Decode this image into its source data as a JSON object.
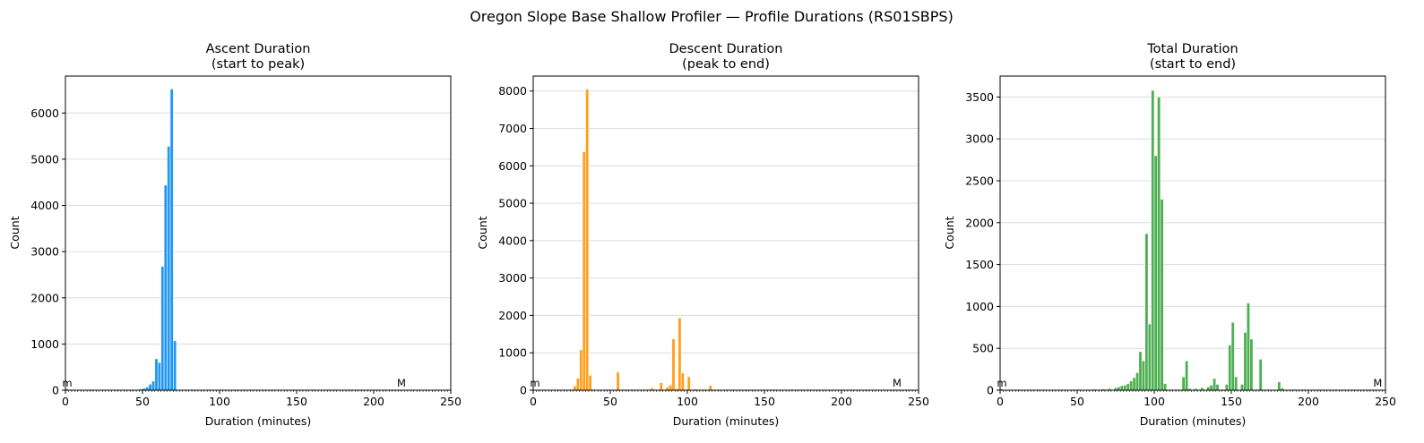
{
  "figure": {
    "suptitle": "Oregon Slope Base Shallow Profiler — Profile Durations (RS01SBPS)"
  },
  "colors": {
    "ascent": "#2196f3",
    "descent": "#ff9f1c",
    "total": "#4caf50"
  },
  "chart_data": [
    {
      "type": "bar",
      "title_line1": "Ascent Duration",
      "title_line2": "(start to peak)",
      "xlabel": "Duration (minutes)",
      "ylabel": "Count",
      "xlim": [
        0,
        250
      ],
      "ylim": [
        0,
        6800
      ],
      "xticks": [
        0,
        50,
        100,
        150,
        200,
        250
      ],
      "yticks": [
        0,
        1000,
        2000,
        3000,
        4000,
        5000,
        6000
      ],
      "bin_width": 2,
      "min_marker": {
        "label": "m",
        "value": 0
      },
      "max_marker": {
        "label": "M",
        "value": 218
      },
      "bins": [
        [
          0,
          30
        ],
        [
          2,
          10
        ],
        [
          4,
          8
        ],
        [
          6,
          6
        ],
        [
          10,
          5
        ],
        [
          14,
          5
        ],
        [
          18,
          4
        ],
        [
          22,
          4
        ],
        [
          26,
          5
        ],
        [
          30,
          6
        ],
        [
          34,
          6
        ],
        [
          38,
          8
        ],
        [
          42,
          10
        ],
        [
          46,
          15
        ],
        [
          48,
          25
        ],
        [
          50,
          45
        ],
        [
          52,
          70
        ],
        [
          54,
          130
        ],
        [
          56,
          200
        ],
        [
          58,
          680
        ],
        [
          60,
          600
        ],
        [
          62,
          2680
        ],
        [
          64,
          4440
        ],
        [
          66,
          5280
        ],
        [
          68,
          6520
        ],
        [
          70,
          1070
        ]
      ],
      "ticks_text": [
        "0",
        "50",
        "100",
        "150",
        "200",
        "250"
      ]
    },
    {
      "type": "bar",
      "title_line1": "Descent Duration",
      "title_line2": "(peak to end)",
      "xlabel": "Duration (minutes)",
      "ylabel": "Count",
      "xlim": [
        0,
        250
      ],
      "ylim": [
        0,
        8400
      ],
      "xticks": [
        0,
        50,
        100,
        150,
        200,
        250
      ],
      "yticks": [
        0,
        1000,
        2000,
        3000,
        4000,
        5000,
        6000,
        7000,
        8000
      ],
      "bin_width": 2,
      "min_marker": {
        "label": "m",
        "value": 0
      },
      "max_marker": {
        "label": "M",
        "value": 236
      },
      "bins": [
        [
          24,
          20
        ],
        [
          26,
          110
        ],
        [
          28,
          320
        ],
        [
          30,
          1080
        ],
        [
          32,
          6380
        ],
        [
          34,
          8050
        ],
        [
          36,
          400
        ],
        [
          54,
          480
        ],
        [
          76,
          60
        ],
        [
          82,
          200
        ],
        [
          86,
          80
        ],
        [
          88,
          140
        ],
        [
          90,
          1370
        ],
        [
          92,
          40
        ],
        [
          94,
          1930
        ],
        [
          96,
          460
        ],
        [
          100,
          360
        ],
        [
          104,
          30
        ],
        [
          114,
          130
        ]
      ]
    },
    {
      "type": "bar",
      "title_line1": "Total Duration",
      "title_line2": "(start to end)",
      "xlabel": "Duration (minutes)",
      "ylabel": "Count",
      "xlim": [
        0,
        250
      ],
      "ylim": [
        0,
        3750
      ],
      "xticks": [
        0,
        50,
        100,
        150,
        200,
        250
      ],
      "yticks": [
        0,
        500,
        1000,
        1500,
        2000,
        2500,
        3000,
        3500
      ],
      "bin_width": 2,
      "min_marker": {
        "label": "m",
        "value": 0
      },
      "max_marker": {
        "label": "M",
        "value": 245
      },
      "bins": [
        [
          0,
          15
        ],
        [
          10,
          8
        ],
        [
          20,
          8
        ],
        [
          30,
          8
        ],
        [
          40,
          8
        ],
        [
          50,
          10
        ],
        [
          60,
          12
        ],
        [
          66,
          15
        ],
        [
          70,
          20
        ],
        [
          74,
          30
        ],
        [
          76,
          40
        ],
        [
          78,
          55
        ],
        [
          80,
          60
        ],
        [
          82,
          80
        ],
        [
          84,
          110
        ],
        [
          86,
          150
        ],
        [
          88,
          210
        ],
        [
          90,
          460
        ],
        [
          92,
          350
        ],
        [
          94,
          1870
        ],
        [
          96,
          790
        ],
        [
          98,
          3580
        ],
        [
          100,
          2800
        ],
        [
          102,
          3500
        ],
        [
          104,
          2280
        ],
        [
          106,
          80
        ],
        [
          118,
          160
        ],
        [
          120,
          350
        ],
        [
          122,
          20
        ],
        [
          126,
          20
        ],
        [
          130,
          30
        ],
        [
          134,
          40
        ],
        [
          136,
          60
        ],
        [
          138,
          140
        ],
        [
          140,
          70
        ],
        [
          144,
          10
        ],
        [
          146,
          70
        ],
        [
          148,
          540
        ],
        [
          150,
          810
        ],
        [
          152,
          160
        ],
        [
          156,
          70
        ],
        [
          158,
          690
        ],
        [
          160,
          1040
        ],
        [
          162,
          610
        ],
        [
          166,
          10
        ],
        [
          168,
          370
        ],
        [
          180,
          100
        ],
        [
          182,
          25
        ],
        [
          190,
          10
        ],
        [
          200,
          8
        ],
        [
          210,
          6
        ],
        [
          220,
          6
        ],
        [
          230,
          6
        ],
        [
          240,
          6
        ]
      ]
    }
  ]
}
